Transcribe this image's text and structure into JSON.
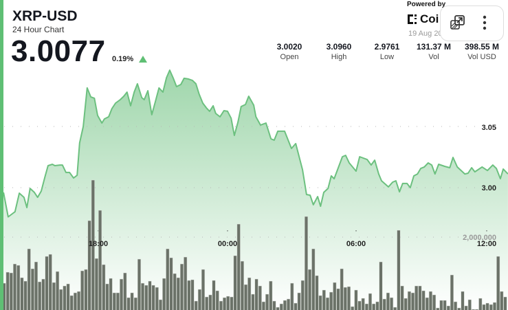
{
  "header": {
    "title": "XRP-USD",
    "subtitle": "24 Hour Chart",
    "price": "3.0077",
    "change": "0.19%",
    "change_direction": "up"
  },
  "stats": [
    {
      "value": "3.0020",
      "label": "Open"
    },
    {
      "value": "3.0960",
      "label": "High"
    },
    {
      "value": "2.9761",
      "label": "Low"
    },
    {
      "value": "131.37 M",
      "label": "Vol"
    },
    {
      "value": "398.55 M",
      "label": "Vol USD"
    }
  ],
  "branding": {
    "powered_by": "Powered by",
    "logo_text": "Coi",
    "date": "19 Aug 20"
  },
  "overlay": {
    "icons": [
      "open-external-icon",
      "more-vertical-icon"
    ]
  },
  "colors": {
    "accent": "#5fbf74",
    "line": "#6cc07f",
    "volume_bar": "#6b7268"
  },
  "chart_data": {
    "type": "line",
    "y_tick_labels": [
      "3.05",
      "3.00"
    ],
    "volume_tick_labels": [
      "2,000,000"
    ],
    "x_tick_labels": [
      "18:00",
      "00:00",
      "06:00",
      "12:00"
    ],
    "ylim": [
      2.96,
      3.12
    ],
    "grid": true,
    "price_series": {
      "x": [
        "13:36",
        "13:49",
        "14:08",
        "14:20",
        "14:33",
        "14:41",
        "14:50",
        "15:02",
        "15:11",
        "15:21",
        "15:31",
        "15:40",
        "15:52",
        "15:59",
        "16:13",
        "16:20",
        "16:30",
        "16:40",
        "16:51",
        "17:01",
        "17:08",
        "17:18",
        "17:29",
        "17:39",
        "17:49",
        "17:58",
        "18:10",
        "18:17",
        "18:29",
        "18:38",
        "18:48",
        "19:01",
        "19:11",
        "19:20",
        "19:30",
        "19:40",
        "19:49",
        "20:01",
        "20:08",
        "20:18",
        "20:29",
        "20:39",
        "20:49",
        "21:00",
        "21:10",
        "21:19",
        "21:29",
        "21:38",
        "21:50",
        "21:59",
        "22:11",
        "22:22",
        "22:32",
        "22:41",
        "22:51",
        "23:01",
        "23:10",
        "23:20",
        "23:27",
        "23:39",
        "23:50",
        "00:00",
        "00:10",
        "00:19",
        "00:29",
        "00:38",
        "00:50",
        "00:59",
        "01:13",
        "01:19",
        "01:32",
        "01:47",
        "02:01",
        "02:10",
        "02:20",
        "02:39",
        "02:58",
        "03:10",
        "03:29",
        "03:40",
        "03:50",
        "03:59",
        "04:11",
        "04:19",
        "04:28",
        "04:40",
        "04:49",
        "04:57",
        "05:20",
        "05:29",
        "05:39",
        "05:58",
        "06:08",
        "06:29",
        "06:40",
        "06:50",
        "07:01",
        "07:09",
        "07:28",
        "07:40",
        "07:49",
        "07:59",
        "08:08",
        "08:20",
        "08:29",
        "08:39",
        "08:49",
        "08:58",
        "09:08",
        "09:19",
        "09:29",
        "09:38",
        "09:48",
        "10:05",
        "10:19",
        "10:28",
        "10:40",
        "11:01",
        "11:10",
        "11:20",
        "11:29",
        "11:49",
        "12:04",
        "12:19",
        "12:29",
        "12:40",
        "12:48",
        "13:01"
      ],
      "y": [
        2.9961,
        2.9761,
        2.9803,
        2.9955,
        2.9921,
        2.9837,
        2.9994,
        2.9961,
        2.9921,
        2.9972,
        3.0084,
        3.018,
        3.0191,
        3.018,
        3.0185,
        3.0185,
        3.0124,
        3.0124,
        3.0079,
        3.0101,
        3.0365,
        3.05,
        3.0815,
        3.0742,
        3.0731,
        3.059,
        3.0528,
        3.0562,
        3.0579,
        3.0646,
        3.0691,
        3.0719,
        3.0747,
        3.0781,
        3.0669,
        3.0781,
        3.0849,
        3.0736,
        3.0719,
        3.0792,
        3.0596,
        3.0703,
        3.0815,
        3.0781,
        3.0899,
        3.096,
        3.0894,
        3.0826,
        3.0843,
        3.0894,
        3.0888,
        3.0877,
        3.0849,
        3.0764,
        3.0691,
        3.0652,
        3.0624,
        3.0669,
        3.0607,
        3.0579,
        3.0629,
        3.0624,
        3.0568,
        3.0427,
        3.0534,
        3.0663,
        3.068,
        3.0747,
        3.0674,
        3.0579,
        3.0511,
        3.0528,
        3.0399,
        3.0388,
        3.0461,
        3.0461,
        3.032,
        3.036,
        3.0146,
        2.9944,
        2.9938,
        2.986,
        2.9927,
        2.9848,
        2.9961,
        2.9994,
        3.0096,
        3.0073,
        3.0253,
        3.0264,
        3.0202,
        3.0135,
        3.0253,
        3.023,
        3.0185,
        3.0225,
        3.0112,
        3.0056,
        3.0006,
        3.0045,
        3.0056,
        2.9966,
        3.0034,
        3.0034,
        3.0,
        3.0096,
        3.0112,
        3.0157,
        3.0169,
        3.0202,
        3.0185,
        3.0112,
        3.0191,
        3.0174,
        3.0163,
        3.0247,
        3.0169,
        3.0112,
        3.0118,
        3.0163,
        3.0129,
        3.0169,
        3.014,
        3.0185,
        3.0157,
        3.0073,
        3.0152,
        3.0112
      ]
    },
    "volume_series": {
      "type": "bar",
      "values": [
        953000,
        1203000,
        1188000,
        1391000,
        1359000,
        1078000,
        1000000,
        1734000,
        1281000,
        1438000,
        984000,
        1047000,
        1563000,
        1609000,
        969000,
        1219000,
        813000,
        891000,
        938000,
        672000,
        734000,
        766000,
        1234000,
        1266000,
        2375000,
        3297000,
        1516000,
        2609000,
        1375000,
        938000,
        1063000,
        734000,
        734000,
        1047000,
        1188000,
        625000,
        734000,
        625000,
        1500000,
        953000,
        906000,
        1000000,
        906000,
        859000,
        578000,
        1063000,
        1734000,
        1531000,
        1172000,
        1078000,
        1391000,
        1547000,
        1016000,
        1031000,
        547000,
        813000,
        1266000,
        641000,
        688000,
        1016000,
        781000,
        547000,
        625000,
        656000,
        641000,
        1578000,
        2297000,
        1453000,
        922000,
        1078000,
        703000,
        1047000,
        891000,
        531000,
        703000,
        1000000,
        547000,
        406000,
        484000,
        563000,
        594000,
        953000,
        500000,
        734000,
        1016000,
        2469000,
        1266000,
        1734000,
        1125000,
        672000,
        797000,
        625000,
        750000,
        969000,
        828000,
        1281000,
        859000,
        875000,
        422000,
        797000,
        547000,
        609000,
        484000,
        719000,
        484000,
        531000,
        1438000,
        594000,
        734000,
        625000,
        406000,
        2156000,
        891000,
        609000,
        766000,
        734000,
        891000,
        891000,
        781000,
        625000,
        766000,
        688000,
        391000,
        563000,
        563000,
        438000,
        1141000,
        531000,
        391000,
        766000,
        438000,
        578000,
        359000,
        359000,
        609000,
        469000,
        500000,
        469000,
        516000,
        1563000,
        766000,
        641000
      ]
    }
  }
}
